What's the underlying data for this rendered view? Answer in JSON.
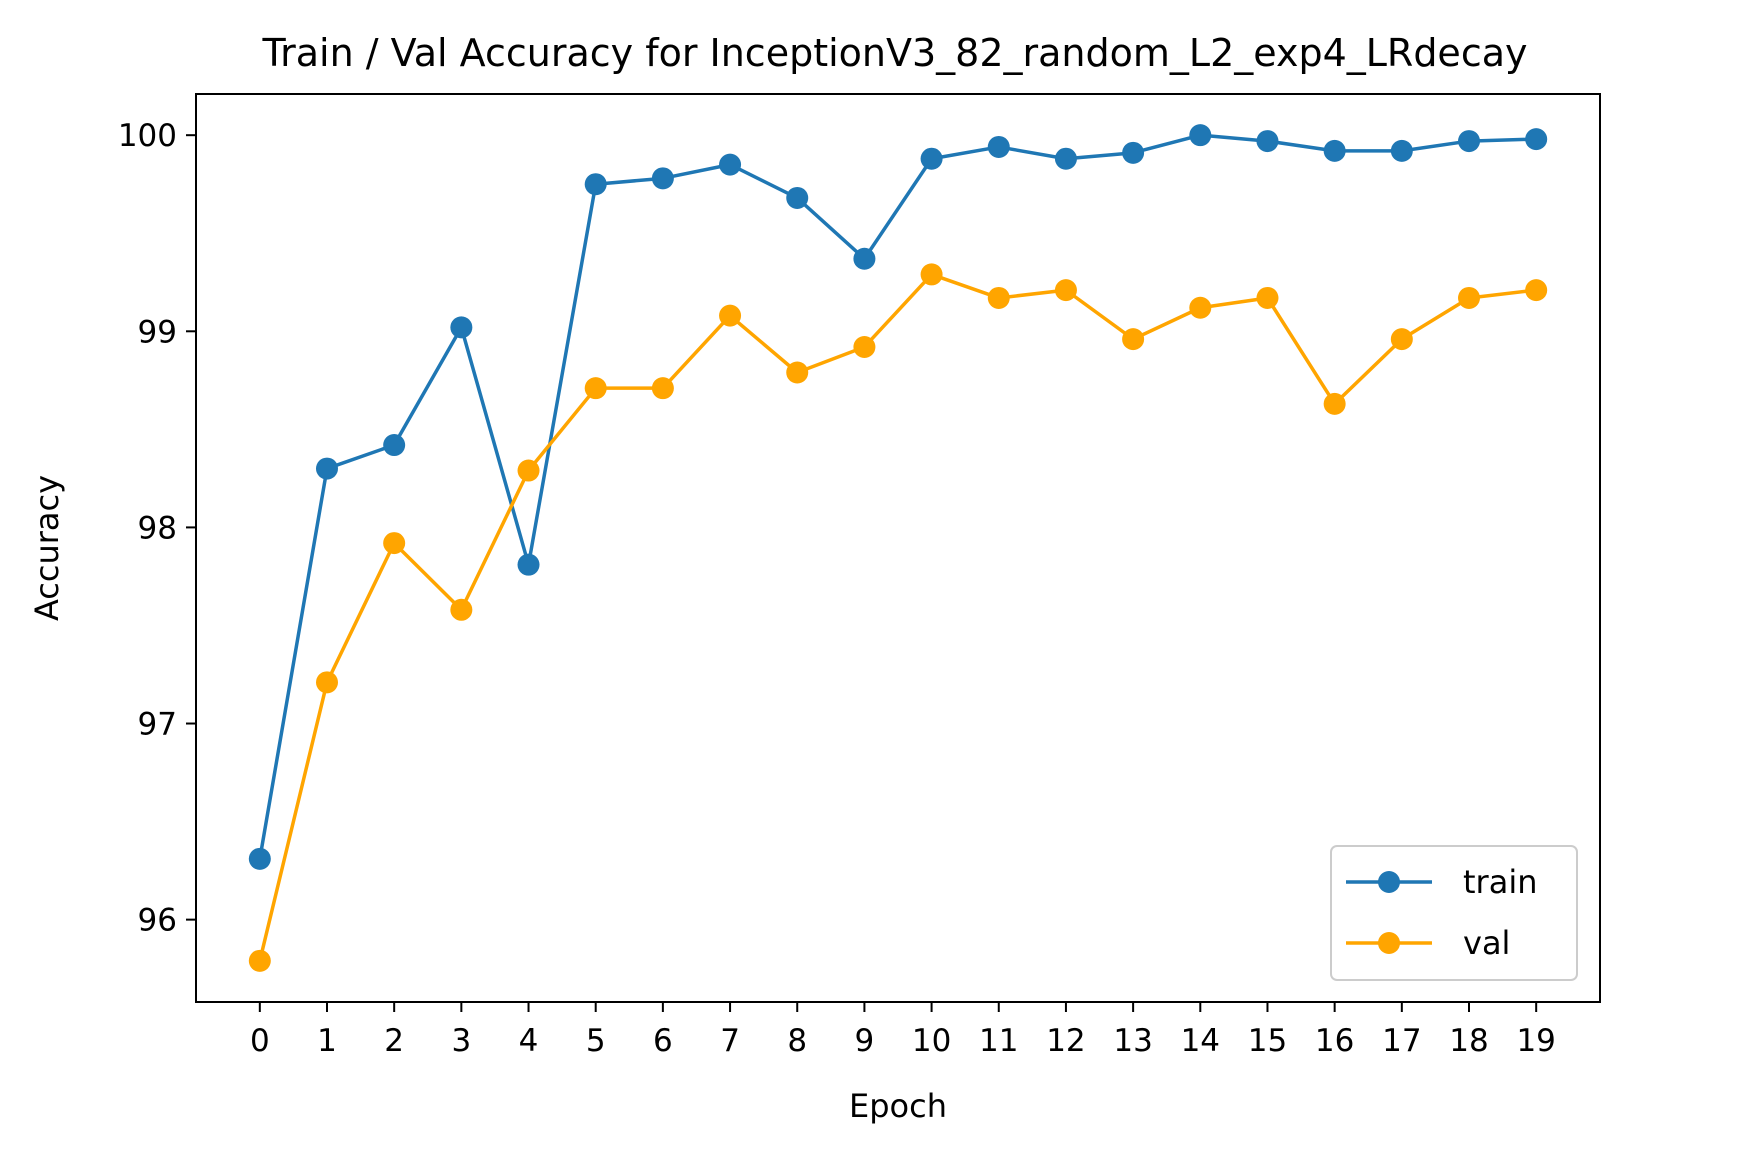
{
  "chart_data": {
    "type": "line",
    "title": "Train / Val Accuracy for InceptionV3_82_random_L2_exp4_LRdecay",
    "xlabel": "Epoch",
    "ylabel": "Accuracy",
    "x": [
      0,
      1,
      2,
      3,
      4,
      5,
      6,
      7,
      8,
      9,
      10,
      11,
      12,
      13,
      14,
      15,
      16,
      17,
      18,
      19
    ],
    "x_tick_labels": [
      "0",
      "1",
      "2",
      "3",
      "4",
      "5",
      "6",
      "7",
      "8",
      "9",
      "10",
      "11",
      "12",
      "13",
      "14",
      "15",
      "16",
      "17",
      "18",
      "19"
    ],
    "xlim": [
      -0.95,
      19.95
    ],
    "ylim": [
      95.58,
      100.21
    ],
    "y_ticks": [
      96,
      97,
      98,
      99,
      100
    ],
    "y_tick_labels": [
      "96",
      "97",
      "98",
      "99",
      "100"
    ],
    "grid": false,
    "legend": {
      "position": "bottom-right"
    },
    "series": [
      {
        "name": "train",
        "color": "#1f77b4",
        "marker": "circle",
        "values": [
          96.31,
          98.3,
          98.42,
          99.02,
          97.81,
          99.75,
          99.78,
          99.85,
          99.68,
          99.37,
          99.88,
          99.94,
          99.88,
          99.91,
          100.0,
          99.97,
          99.92,
          99.92,
          99.97,
          99.98
        ]
      },
      {
        "name": "val",
        "color": "#ffa500",
        "marker": "circle",
        "values": [
          95.79,
          97.21,
          97.92,
          97.58,
          98.29,
          98.71,
          98.71,
          99.08,
          98.79,
          98.92,
          99.29,
          99.17,
          99.21,
          98.96,
          99.12,
          99.17,
          98.63,
          98.96,
          99.17,
          99.21
        ]
      }
    ]
  }
}
